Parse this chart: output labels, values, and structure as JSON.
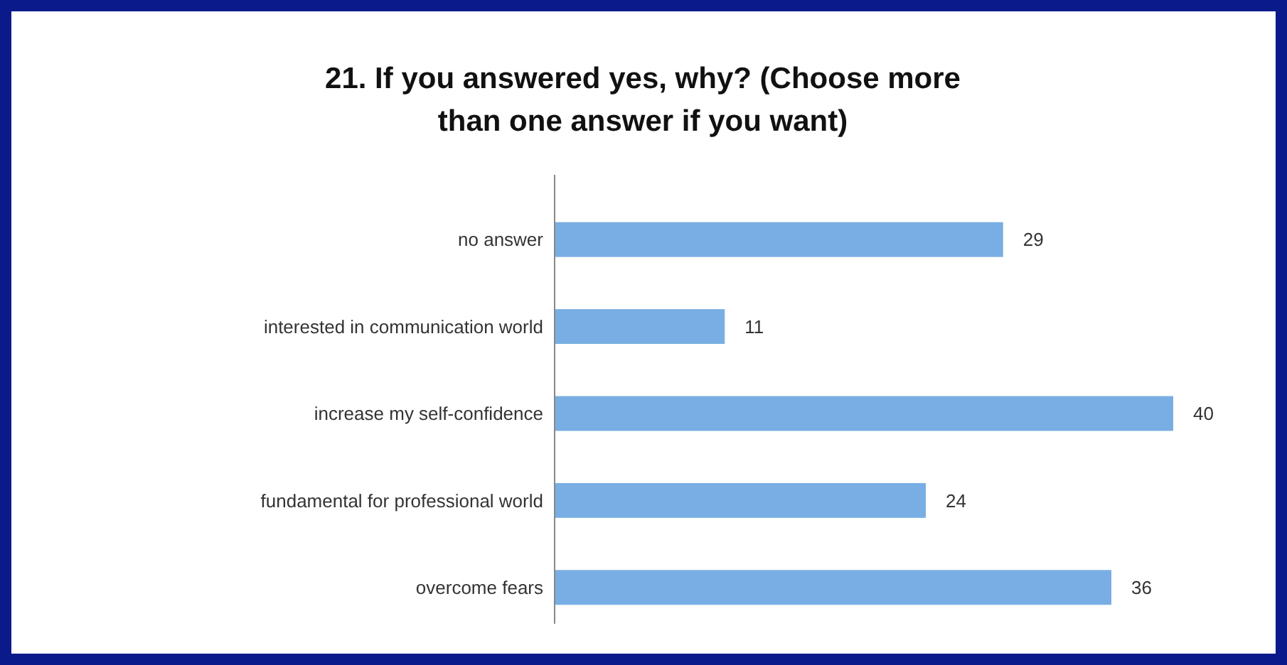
{
  "chart_data": {
    "type": "bar",
    "orientation": "horizontal",
    "title": "21. If you answered yes, why? (Choose more than one answer if you want)",
    "categories": [
      "no answer",
      "interested in communication world",
      "increase my self-confidence",
      "fundamental for professional world",
      "overcome fears"
    ],
    "values": [
      29,
      11,
      40,
      24,
      36
    ],
    "color": "#78aee3",
    "data_labels": true
  }
}
